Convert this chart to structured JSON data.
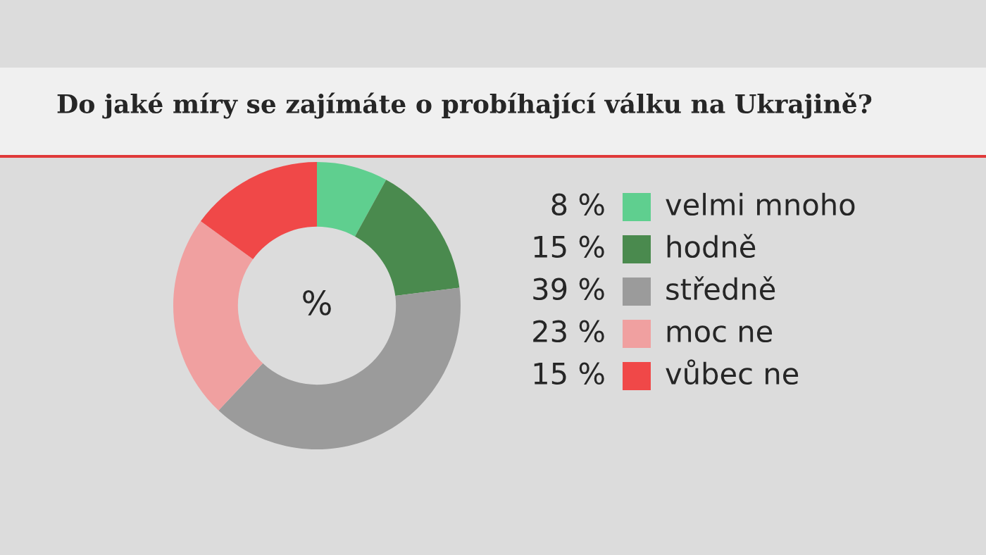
{
  "chart_data": {
    "type": "donut",
    "title": "Do jaké míry se zajímáte o probíhající válku na Ukrajině?",
    "categories": [
      "velmi mnoho",
      "hodně",
      "středně",
      "moc ne",
      "vůbec ne"
    ],
    "values": [
      8,
      15,
      39,
      23,
      15
    ],
    "value_labels": [
      "8 %",
      "15 %",
      "39 %",
      "23 %",
      "15 %"
    ],
    "colors": [
      "#5fcf8f",
      "#4a8a4e",
      "#9b9b9b",
      "#f0a0a0",
      "#f04848"
    ],
    "annotations": [
      "%"
    ],
    "legend": "right"
  }
}
